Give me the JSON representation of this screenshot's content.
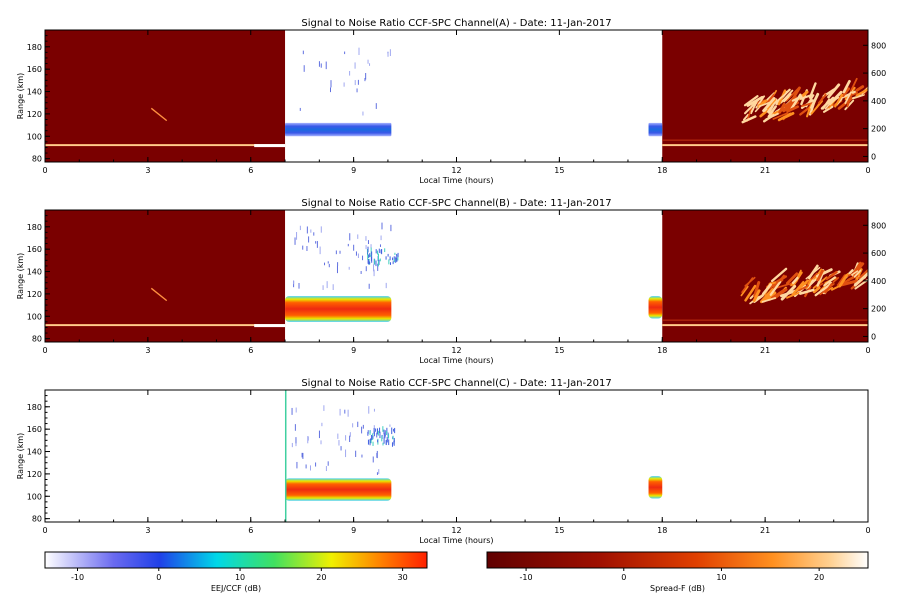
{
  "chart_data": [
    {
      "type": "heatmap",
      "title": "Signal to Noise Ratio CCF-SPC Channel(A) - Date: 11-Jan-2017",
      "xlabel": "Local Time (hours)",
      "ylabel": "Range (km)",
      "xlim": [
        0,
        24
      ],
      "ylim": [
        77,
        195
      ],
      "x_ticks": [
        "0",
        "3",
        "6",
        "9",
        "12",
        "15",
        "18",
        "21",
        "0"
      ],
      "y_ticks": [
        "80",
        "100",
        "120",
        "140",
        "160",
        "180"
      ],
      "y2_ticks": [
        "0",
        "200",
        "400",
        "600",
        "800"
      ],
      "y2lim": [
        -40,
        910
      ],
      "spreadF_left_hours": [
        0,
        7
      ],
      "spreadF_right_hours": [
        18,
        24
      ],
      "eej_blocks": [
        {
          "x": [
            7,
            10.1
          ],
          "y": [
            100,
            112
          ],
          "level": "weak"
        },
        {
          "x": [
            17.6,
            18
          ],
          "y": [
            100,
            112
          ],
          "level": "weak"
        }
      ]
    },
    {
      "type": "heatmap",
      "title": "Signal to Noise Ratio CCF-SPC Channel(B) - Date: 11-Jan-2017",
      "xlabel": "Local Time (hours)",
      "ylabel": "Range (km)",
      "xlim": [
        0,
        24
      ],
      "ylim": [
        77,
        195
      ],
      "x_ticks": [
        "0",
        "3",
        "6",
        "9",
        "12",
        "15",
        "18",
        "21",
        "0"
      ],
      "y_ticks": [
        "80",
        "100",
        "120",
        "140",
        "160",
        "180"
      ],
      "y2_ticks": [
        "0",
        "200",
        "400",
        "600",
        "800"
      ],
      "y2lim": [
        -40,
        910
      ],
      "spreadF_left_hours": [
        0,
        7
      ],
      "spreadF_right_hours": [
        18,
        24
      ],
      "eej_blocks": [
        {
          "x": [
            7,
            10.1
          ],
          "y": [
            95,
            118
          ],
          "level": "strong"
        },
        {
          "x": [
            17.6,
            18
          ],
          "y": [
            98,
            118
          ],
          "level": "strong"
        }
      ]
    },
    {
      "type": "heatmap",
      "title": "Signal to Noise Ratio CCF-SPC Channel(C) - Date: 11-Jan-2017",
      "xlabel": "Local Time (hours)",
      "ylabel": "Range (km)",
      "xlim": [
        0,
        24
      ],
      "ylim": [
        77,
        195
      ],
      "x_ticks": [
        "0",
        "3",
        "6",
        "9",
        "12",
        "15",
        "18",
        "21",
        "0"
      ],
      "y_ticks": [
        "80",
        "100",
        "120",
        "140",
        "160",
        "180"
      ],
      "eej_blocks": [
        {
          "x": [
            7,
            10.1
          ],
          "y": [
            96,
            116
          ],
          "level": "strong"
        },
        {
          "x": [
            17.6,
            18
          ],
          "y": [
            98,
            118
          ],
          "level": "strong"
        }
      ]
    }
  ],
  "colorbars": [
    {
      "label": "EEJ/CCF (dB)",
      "range": [
        -14,
        33
      ],
      "ticks": [
        "-10",
        "0",
        "10",
        "20",
        "30"
      ],
      "colormap": "jet-like"
    },
    {
      "label": "Spread-F (dB)",
      "range": [
        -14,
        25
      ],
      "ticks": [
        "-10",
        "0",
        "10",
        "20"
      ],
      "colormap": "hot"
    }
  ],
  "colors": {
    "spreadF_background": "#7a0000",
    "eej_weak": "#3a60e8",
    "eej_strong": "#ee3010"
  }
}
